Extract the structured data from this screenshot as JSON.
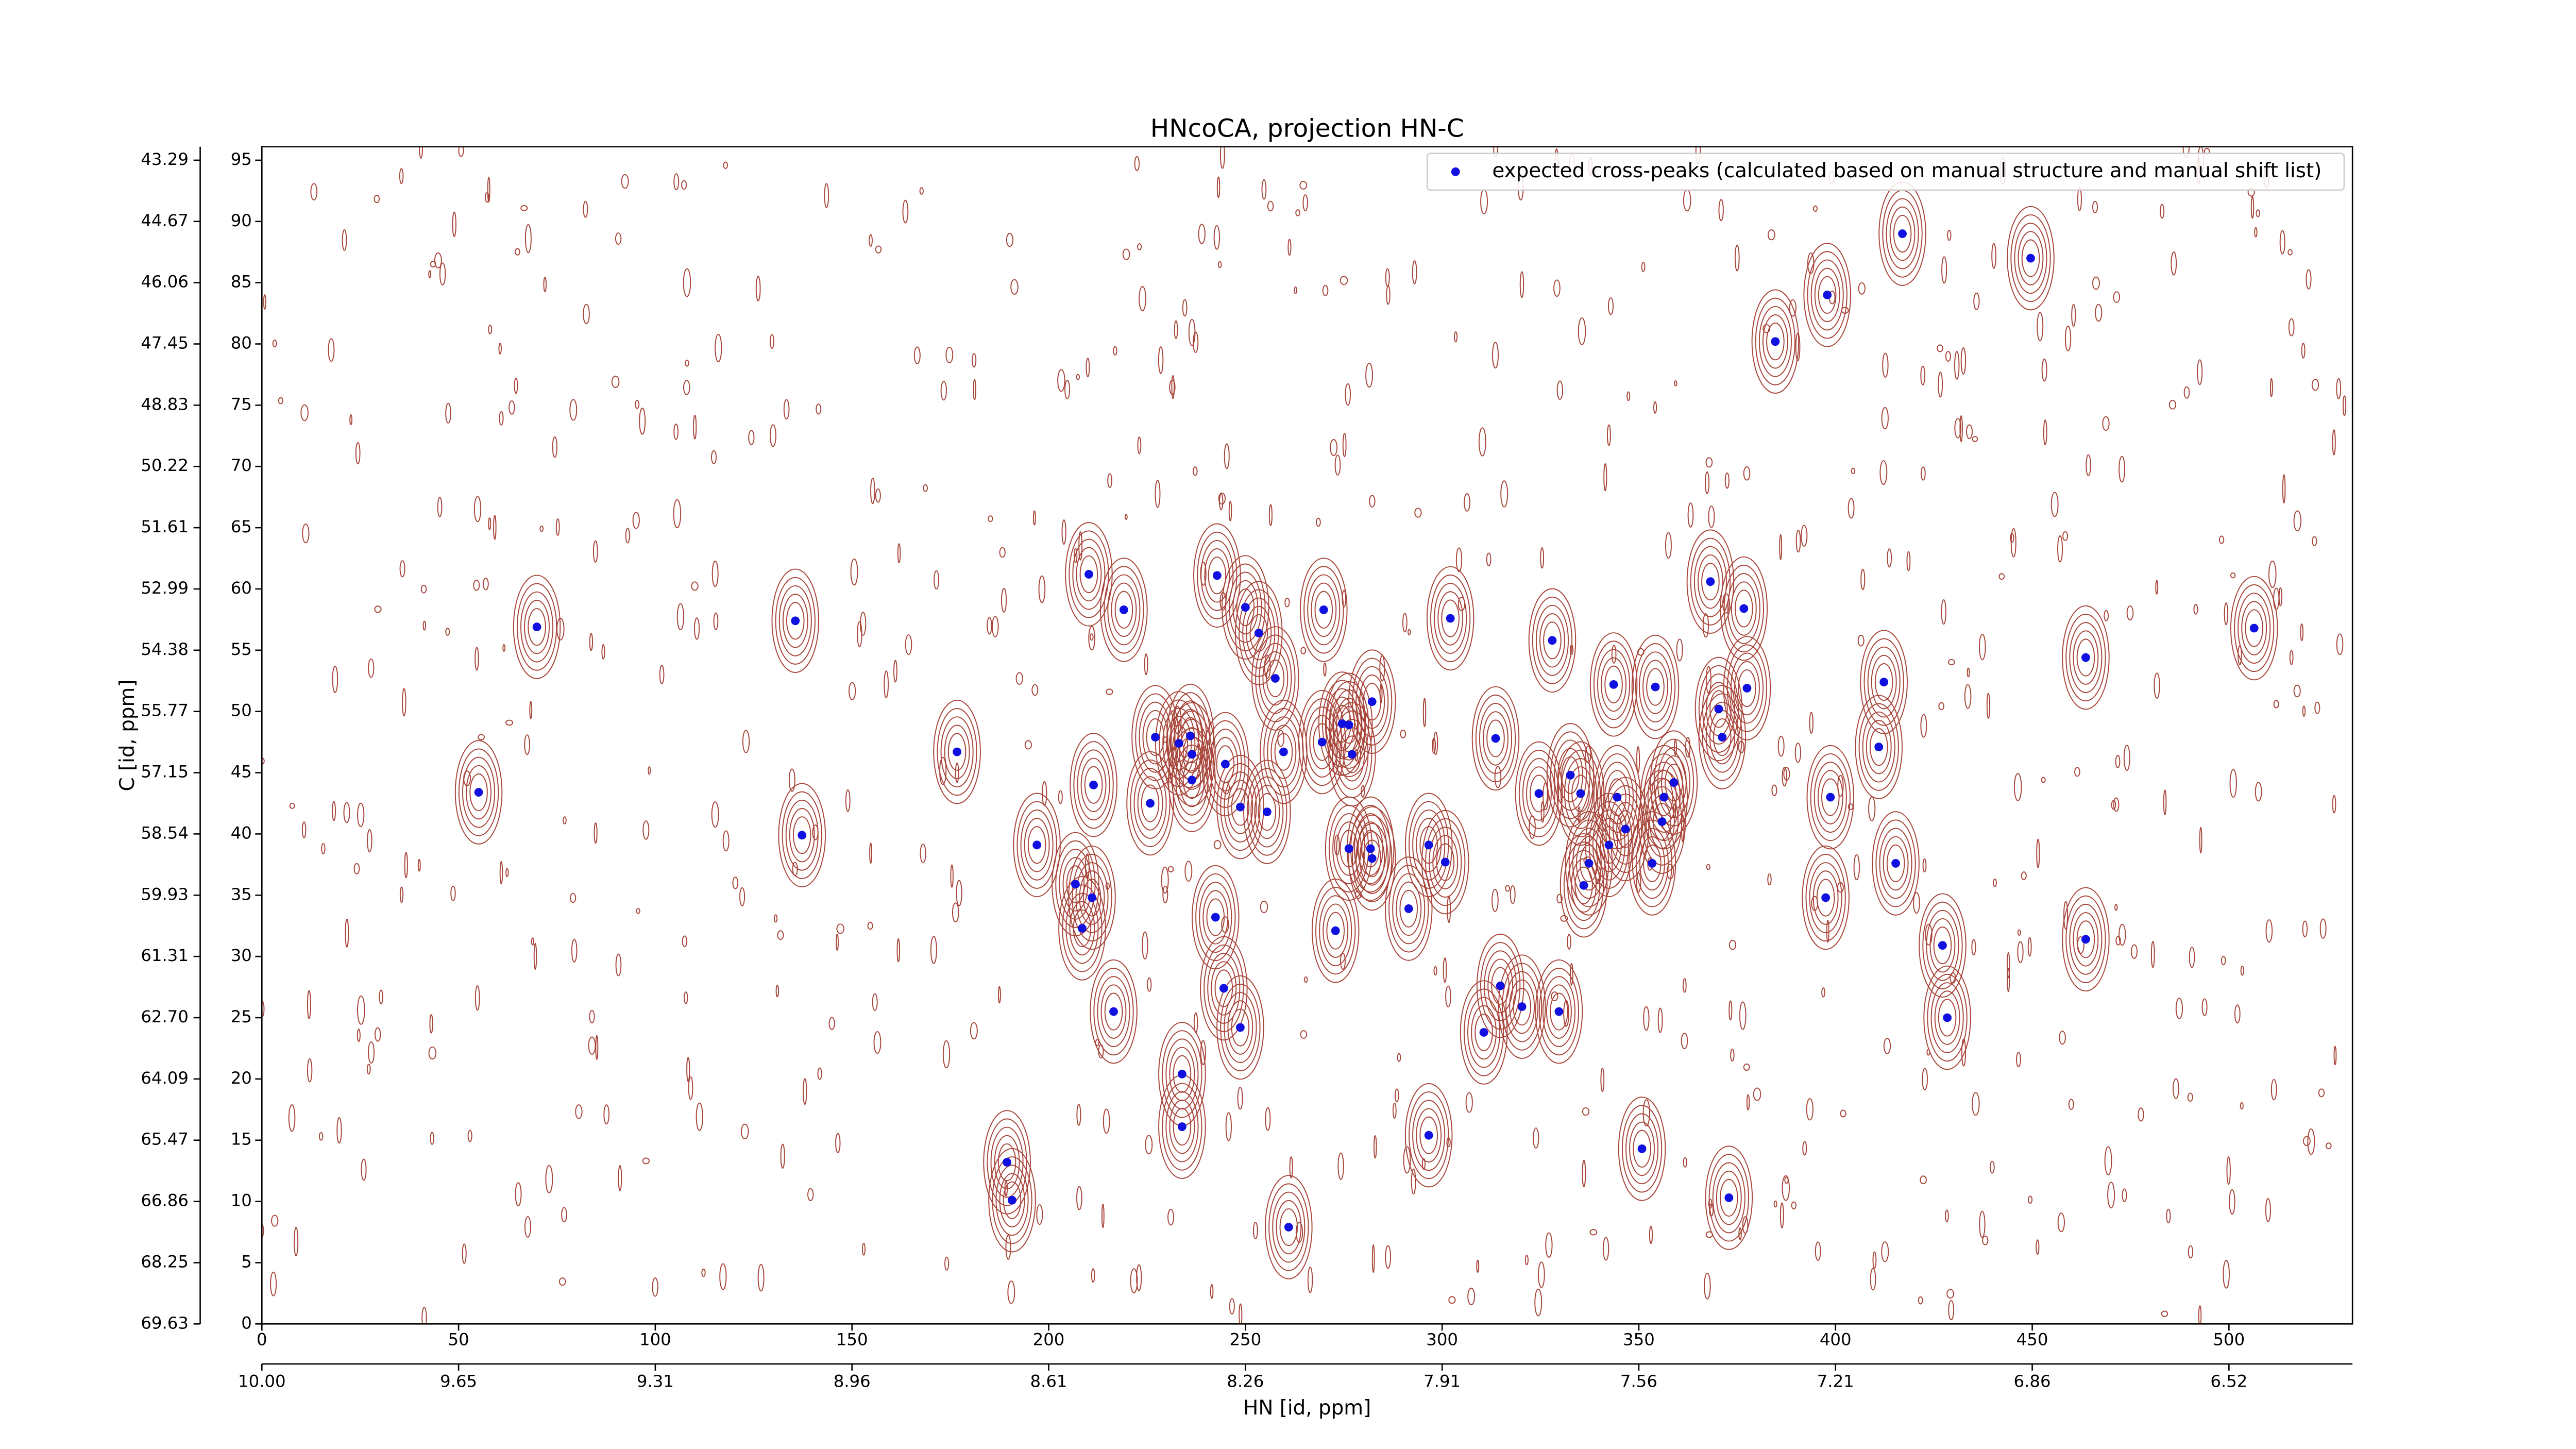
{
  "chart_data": {
    "type": "scatter",
    "title": "HNcoCA, projection HN-C",
    "x_label": "HN [id, ppm]",
    "y_label": "C [id, ppm]",
    "legend": "upper right",
    "series": [
      {
        "name": "expected cross-peaks (calculated based on manual structure and manual shift list)",
        "color": "#1010e0",
        "x": [
          55.1,
          69.9,
          135.6,
          137.3,
          176.7,
          189.4,
          190.7,
          197.0,
          206.8,
          208.5,
          211.0,
          210.2,
          211.4,
          216.5,
          219.1,
          225.8,
          227.1,
          233.1,
          233.9,
          233.9,
          236.0,
          236.4,
          236.4,
          242.4,
          242.8,
          244.5,
          244.9,
          248.7,
          248.7,
          250.0,
          253.4,
          255.5,
          257.6,
          259.7,
          261.0,
          269.9,
          269.5,
          272.9,
          274.6,
          276.3,
          276.3,
          277.1,
          281.8,
          282.2,
          282.2,
          291.5,
          296.6,
          296.6,
          300.8,
          302.1,
          310.6,
          313.6,
          314.8,
          320.3,
          324.6,
          328.0,
          329.7,
          332.6,
          335.2,
          336.0,
          337.3,
          342.4,
          343.6,
          344.5,
          346.6,
          350.8,
          353.4,
          354.2,
          355.9,
          356.4,
          358.9,
          368.2,
          370.3,
          371.2,
          372.9,
          376.7,
          377.5,
          384.7,
          397.9,
          397.5,
          398.7,
          411.0,
          412.3,
          415.3,
          417.0,
          427.2,
          428.4,
          449.6,
          463.6,
          463.6,
          506.4
        ],
        "values": [
          43.4,
          56.9,
          57.4,
          39.9,
          46.7,
          13.2,
          10.1,
          39.1,
          35.9,
          32.3,
          34.8,
          61.2,
          44.0,
          25.5,
          58.3,
          42.5,
          47.9,
          47.4,
          20.4,
          16.1,
          48.0,
          46.5,
          44.4,
          33.2,
          61.1,
          27.4,
          45.7,
          42.2,
          24.2,
          58.5,
          56.4,
          41.8,
          52.7,
          46.7,
          7.9,
          58.3,
          47.5,
          32.1,
          49.0,
          48.9,
          38.8,
          46.5,
          38.8,
          38.0,
          50.8,
          33.9,
          15.4,
          39.1,
          37.7,
          57.6,
          23.8,
          47.8,
          27.6,
          25.9,
          43.3,
          55.8,
          25.5,
          44.8,
          43.3,
          35.8,
          37.6,
          39.1,
          52.2,
          43.0,
          40.4,
          14.3,
          37.6,
          52.0,
          41.0,
          43.0,
          44.2,
          60.6,
          50.2,
          47.9,
          10.3,
          58.4,
          51.9,
          80.2,
          84.0,
          34.8,
          43.0,
          47.1,
          52.4,
          37.6,
          89.0,
          30.9,
          25.0,
          87.0,
          54.4,
          31.4,
          56.8
        ]
      }
    ],
    "xlim": [
      0,
      531.4
    ],
    "ylim": [
      0,
      96.1
    ],
    "xticks": [
      0,
      50,
      100,
      150,
      200,
      250,
      300,
      350,
      400,
      450,
      500
    ],
    "yticks": [
      0,
      5,
      10,
      15,
      20,
      25,
      30,
      35,
      40,
      45,
      50,
      55,
      60,
      65,
      70,
      75,
      80,
      85,
      90,
      95
    ],
    "x2ticks": [
      {
        "value": 0,
        "label": "10.00"
      },
      {
        "value": 50,
        "label": "9.65"
      },
      {
        "value": 100,
        "label": "9.31"
      },
      {
        "value": 150,
        "label": "8.96"
      },
      {
        "value": 200,
        "label": "8.61"
      },
      {
        "value": 250,
        "label": "8.26"
      },
      {
        "value": 300,
        "label": "7.91"
      },
      {
        "value": 350,
        "label": "7.56"
      },
      {
        "value": 400,
        "label": "7.21"
      },
      {
        "value": 450,
        "label": "6.86"
      },
      {
        "value": 500,
        "label": "6.52"
      }
    ],
    "y2ticks": [
      {
        "value": 0,
        "label": "69.63"
      },
      {
        "value": 5,
        "label": "68.25"
      },
      {
        "value": 10,
        "label": "66.86"
      },
      {
        "value": 15,
        "label": "65.47"
      },
      {
        "value": 20,
        "label": "64.09"
      },
      {
        "value": 25,
        "label": "62.70"
      },
      {
        "value": 30,
        "label": "61.31"
      },
      {
        "value": 35,
        "label": "59.93"
      },
      {
        "value": 40,
        "label": "58.54"
      },
      {
        "value": 45,
        "label": "57.15"
      },
      {
        "value": 50,
        "label": "55.77"
      },
      {
        "value": 55,
        "label": "54.38"
      },
      {
        "value": 60,
        "label": "52.99"
      },
      {
        "value": 65,
        "label": "51.61"
      },
      {
        "value": 70,
        "label": "50.22"
      },
      {
        "value": 75,
        "label": "48.83"
      },
      {
        "value": 80,
        "label": "47.45"
      },
      {
        "value": 85,
        "label": "46.06"
      },
      {
        "value": 90,
        "label": "44.67"
      },
      {
        "value": 95,
        "label": "43.29"
      }
    ]
  }
}
